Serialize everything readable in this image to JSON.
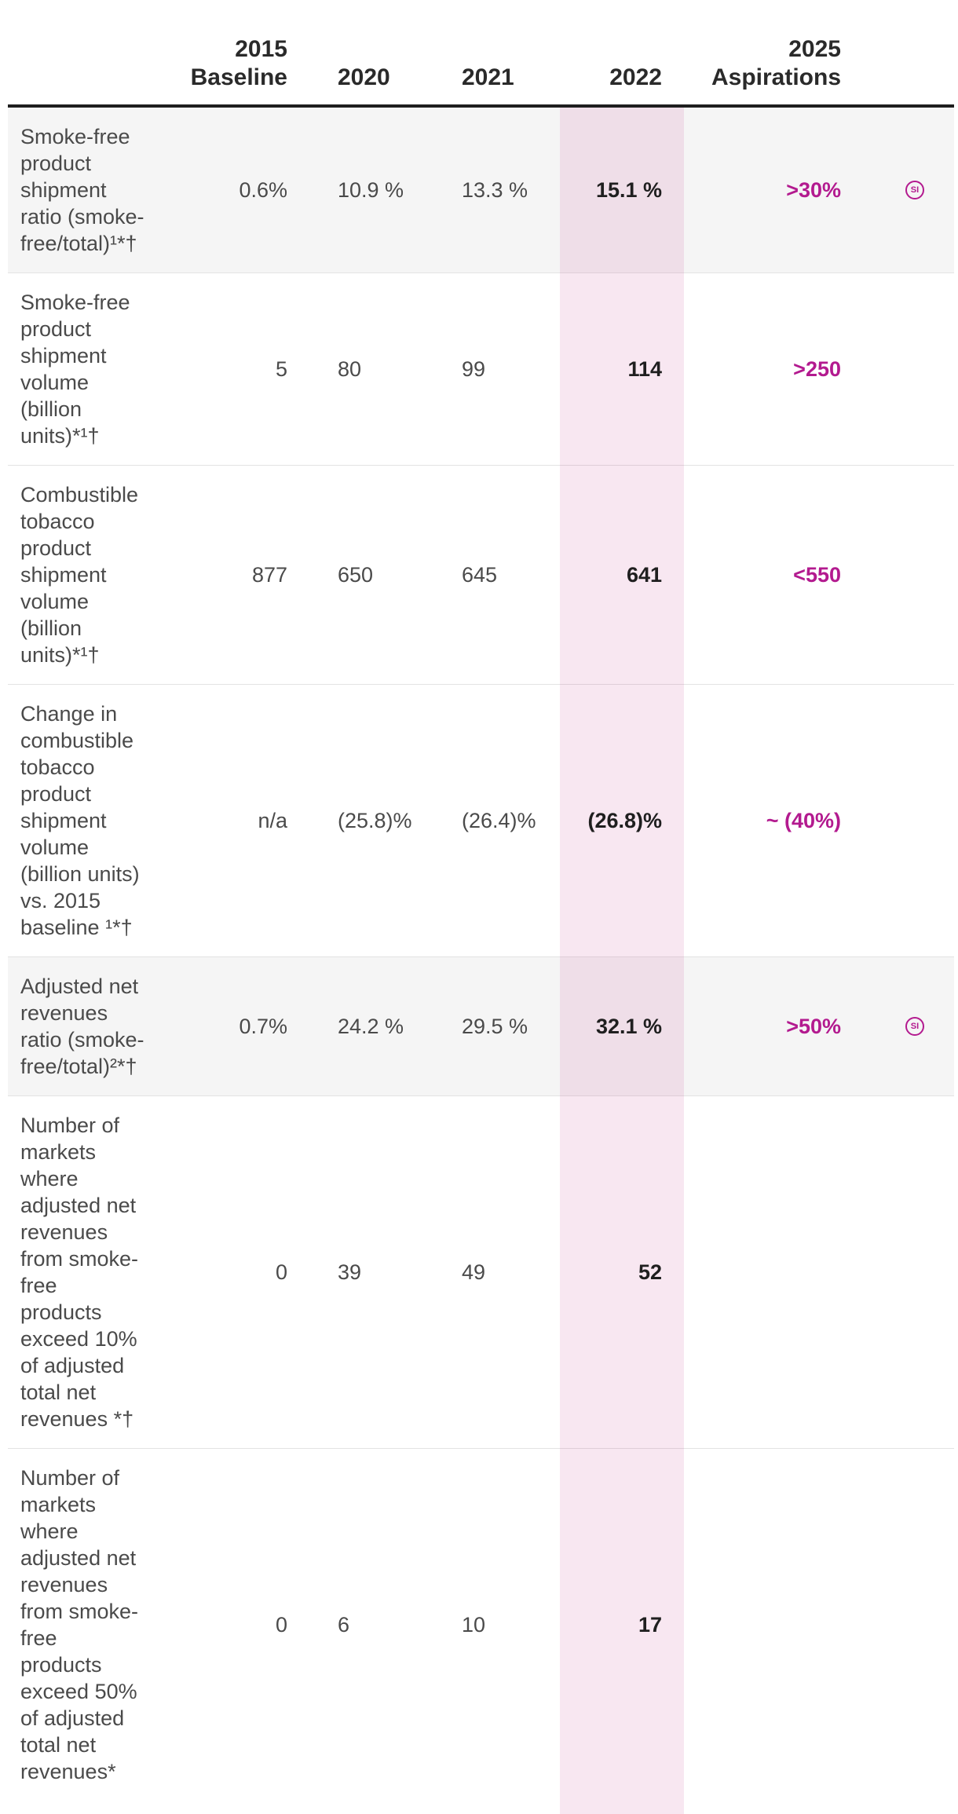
{
  "header": {
    "col_2015_line1": "2015",
    "col_2015_line2": "Baseline",
    "col_2020": "2020",
    "col_2021": "2021",
    "col_2022": "2022",
    "col_2025_line1": "2025",
    "col_2025_line2": "Aspirations"
  },
  "colors": {
    "accent": "#b31a8f",
    "highlight_column": "#f4e6f0",
    "shaded_row": "#f5f5f5"
  },
  "rows": [
    {
      "label_lines": [
        "Smoke-free",
        "product",
        "shipment",
        "ratio (smoke-",
        "free/total)¹*†"
      ],
      "v2015": "0.6%",
      "v2020": "10.9 %",
      "v2021": "13.3 %",
      "v2022": "15.1 %",
      "v2025": ">30%",
      "icon": "SI"
    },
    {
      "label_lines": [
        "Smoke-free",
        "product",
        "shipment",
        "volume",
        "(billion",
        "units)*¹†"
      ],
      "v2015": "5",
      "v2020": "80",
      "v2021": "99",
      "v2022": "114",
      "v2025": ">250"
    },
    {
      "label_lines": [
        "Combustible",
        "tobacco",
        "product",
        "shipment",
        "volume",
        "(billion",
        "units)*¹†"
      ],
      "v2015": "877",
      "v2020": "650",
      "v2021": "645",
      "v2022": "641",
      "v2025": "<550"
    },
    {
      "label_lines": [
        "Change in",
        "combustible",
        "tobacco",
        "product",
        "shipment",
        "volume",
        "(billion units)",
        "vs. 2015",
        "baseline ¹*†"
      ],
      "v2015": "n/a",
      "v2020": "(25.8)%",
      "v2021": "(26.4)%",
      "v2022": "(26.8)%",
      "v2025": "~ (40%)"
    },
    {
      "label_lines": [
        "Adjusted net",
        "revenues",
        "ratio (smoke-",
        "free/total)²*†"
      ],
      "v2015": "0.7%",
      "v2020": "24.2 %",
      "v2021": "29.5 %",
      "v2022": "32.1 %",
      "v2025": ">50%",
      "icon": "SI"
    },
    {
      "label_lines": [
        "Number of",
        "markets",
        "where",
        "adjusted net",
        "revenues",
        "from smoke-",
        "free",
        "products",
        "exceed 10%",
        "of adjusted",
        "total net",
        "revenues *†"
      ],
      "v2015": "0",
      "v2020": "39",
      "v2021": "49",
      "v2022": "52",
      "v2025": ""
    },
    {
      "label_lines": [
        "Number of",
        "markets",
        "where",
        "adjusted net",
        "revenues",
        "from smoke-",
        "free",
        "products",
        "exceed 50%",
        "of adjusted",
        "total net",
        "revenues*"
      ],
      "v2015": "0",
      "v2020": "6",
      "v2021": "10",
      "v2022": "17",
      "v2025": ""
    }
  ]
}
